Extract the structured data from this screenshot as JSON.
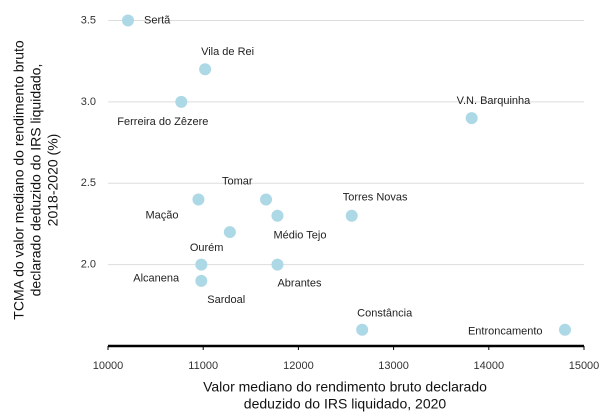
{
  "chart_data": {
    "type": "scatter",
    "x_label": [
      "Valor mediano do rendimento bruto declarado",
      "deduzido do IRS liquidado, 2020"
    ],
    "y_label": [
      "TCMA do valor mediano do rendimento bruto",
      "declarado deduzido do IRS liquidado,",
      "2018-2020 (%)"
    ],
    "labels": [
      "Sertã",
      "Vila de Rei",
      "Ferreira do Zêzere",
      "V.N. Barquinha",
      "Tomar",
      "Mação",
      "Médio Tejo",
      "Torres Novas",
      "Ourém",
      "Alcanena",
      "Abrantes",
      "Sardoal",
      "Constância",
      "Entroncamento"
    ],
    "x": [
      10210,
      11020,
      10770,
      13820,
      11660,
      10950,
      11780,
      12560,
      11280,
      10980,
      11780,
      10980,
      12670,
      14800
    ],
    "y": [
      3.5,
      3.2,
      3.0,
      2.9,
      2.4,
      2.4,
      2.3,
      2.3,
      2.2,
      2.0,
      2.0,
      1.9,
      1.6,
      1.6
    ],
    "color": "#add8e6",
    "xlim": [
      10000,
      15000
    ],
    "xticks": [
      10000,
      11000,
      12000,
      13000,
      14000,
      15000
    ],
    "ylim": [
      1.5,
      3.56
    ],
    "yticks": [
      {
        "value": 2,
        "label": "2.0"
      },
      2.5,
      {
        "value": 3,
        "label": "3.0"
      },
      3.5
    ],
    "grid": true
  }
}
